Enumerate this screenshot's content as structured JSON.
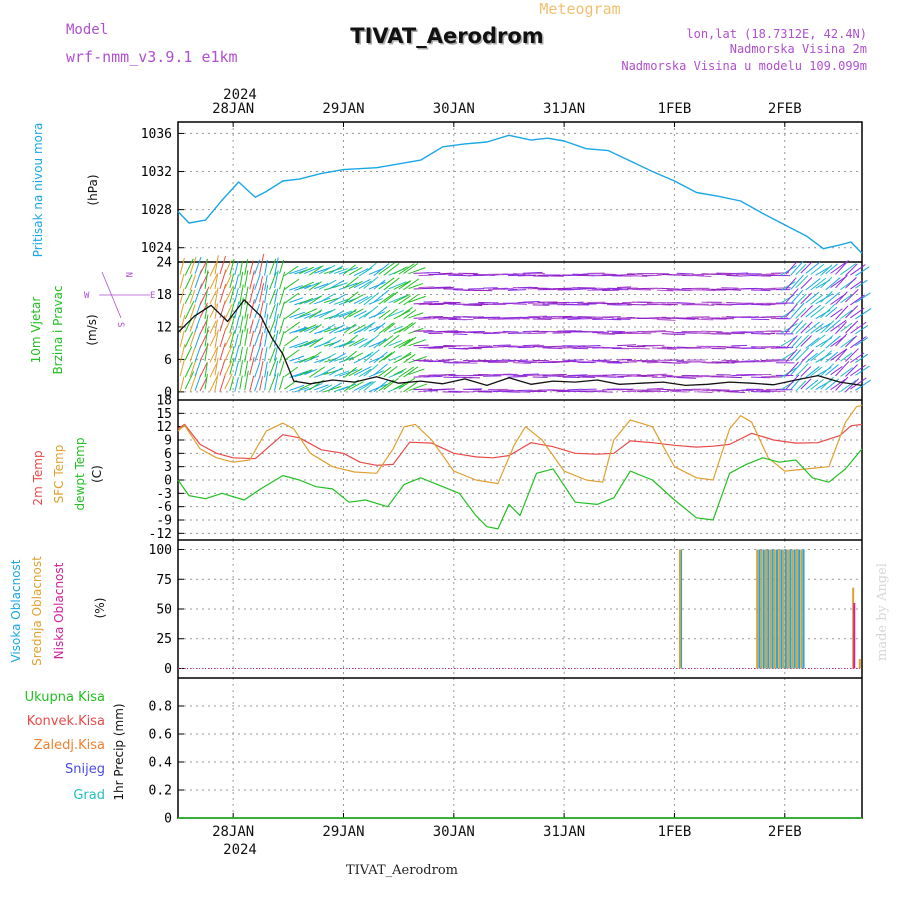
{
  "header": {
    "title": "TIVAT_Aerodrom",
    "subtitle": "Meteogram",
    "model_label": "Model",
    "model_name": "wrf-nmm_v3.9.1 e1km",
    "lonlat": "lon,lat (18.7312E, 42.4N)",
    "elev": "Nadmorska Visina 2m",
    "elev_model": "Nadmorska Visina u modelu 109.099m",
    "footer": "TIVAT_Aerodrom",
    "watermark": "made by Angel",
    "year": "2024"
  },
  "time_axis": {
    "ticks": [
      "28JAN",
      "29JAN",
      "30JAN",
      "31JAN",
      "1FEB",
      "2FEB"
    ],
    "tick_positions_days": [
      0.5,
      1.5,
      2.5,
      3.5,
      4.5,
      5.5
    ],
    "range_days": [
      0,
      6.2
    ]
  },
  "compass": {
    "n": "N",
    "s": "S",
    "e": "E",
    "w": "W"
  },
  "colors": {
    "pressure": "#1aa7e6",
    "t2m": "#e84a4a",
    "sfc": "#e0a030",
    "dew": "#22c022",
    "cloud_high": "#1aa7e6",
    "cloud_mid": "#e0a030",
    "cloud_low": "#d0209a",
    "wind_label": "#22c022",
    "precip_total": "#22c022",
    "precip_conv": "#e84a4a",
    "precip_frz": "#f08030",
    "precip_snow": "#4a4ae8",
    "precip_grad": "#22c0c0",
    "compass": "#b050d0"
  },
  "chart_data": [
    {
      "id": "pressure",
      "type": "line",
      "ylabel_main": "Pritisak na nivou mora",
      "ylabel_unit": "(hPa)",
      "ylim": [
        1022.5,
        1037.2
      ],
      "yticks": [
        1024,
        1028,
        1032,
        1036
      ],
      "grid": true,
      "series": [
        {
          "key": "slp",
          "x": [
            0,
            0.1,
            0.25,
            0.4,
            0.55,
            0.7,
            0.8,
            0.95,
            1.1,
            1.3,
            1.5,
            1.8,
            2.0,
            2.2,
            2.4,
            2.6,
            2.8,
            3.0,
            3.2,
            3.35,
            3.5,
            3.7,
            3.9,
            4.1,
            4.3,
            4.5,
            4.7,
            4.9,
            5.1,
            5.3,
            5.5,
            5.7,
            5.85,
            6.0,
            6.1,
            6.2
          ],
          "y": [
            1027.8,
            1026.6,
            1026.9,
            1029.0,
            1030.9,
            1029.3,
            1029.9,
            1031.0,
            1031.2,
            1031.8,
            1032.2,
            1032.4,
            1032.8,
            1033.2,
            1034.6,
            1034.9,
            1035.1,
            1035.8,
            1035.3,
            1035.5,
            1035.2,
            1034.4,
            1034.2,
            1033.1,
            1032.0,
            1031.0,
            1029.8,
            1029.4,
            1028.9,
            1027.6,
            1026.4,
            1025.2,
            1023.9,
            1024.3,
            1024.6,
            1023.4
          ]
        }
      ]
    },
    {
      "id": "wind",
      "type": "line",
      "ylabel_main": "10m Vjetar",
      "ylabel_main2": "Brzina i Pravac",
      "ylabel_unit": "(m/s)",
      "ylim": [
        -1.5,
        24
      ],
      "yticks": [
        0,
        6,
        12,
        18,
        24
      ],
      "grid": true,
      "series": [
        {
          "key": "speed",
          "x": [
            0.0,
            0.15,
            0.3,
            0.45,
            0.6,
            0.75,
            0.85,
            0.95,
            1.05,
            1.2,
            1.4,
            1.6,
            1.8,
            2.0,
            2.2,
            2.4,
            2.6,
            2.8,
            3.0,
            3.2,
            3.4,
            3.6,
            3.8,
            4.0,
            4.2,
            4.4,
            4.6,
            4.8,
            5.0,
            5.2,
            5.4,
            5.6,
            5.8,
            6.0,
            6.2
          ],
          "y": [
            11.0,
            14.0,
            16.0,
            13.0,
            17.0,
            14.0,
            10.0,
            7.0,
            2.0,
            1.5,
            2.2,
            1.8,
            2.8,
            1.6,
            2.0,
            1.5,
            2.4,
            1.2,
            2.6,
            1.4,
            2.0,
            1.8,
            2.2,
            1.4,
            1.6,
            1.8,
            1.2,
            1.4,
            1.8,
            1.6,
            1.3,
            2.2,
            3.0,
            1.8,
            1.2
          ]
        }
      ]
    },
    {
      "id": "temps",
      "type": "line",
      "ylabel_main": "2m Temp",
      "ylabel_main2": "SFC Temp",
      "ylabel_main3": "dewpt Temp",
      "ylabel_unit": "(C)",
      "ylim": [
        -13.5,
        18
      ],
      "yticks": [
        -12,
        -9,
        -6,
        -3,
        0,
        3,
        6,
        9,
        12,
        15,
        18
      ],
      "grid": true,
      "series": [
        {
          "key": "t2m",
          "x": [
            0,
            0.06,
            0.2,
            0.35,
            0.5,
            0.7,
            0.95,
            1.1,
            1.3,
            1.5,
            1.65,
            1.8,
            1.95,
            2.1,
            2.3,
            2.5,
            2.7,
            2.85,
            3.0,
            3.2,
            3.4,
            3.6,
            3.8,
            3.95,
            4.1,
            4.3,
            4.5,
            4.7,
            4.85,
            5.0,
            5.2,
            5.4,
            5.6,
            5.8,
            6.0,
            6.1,
            6.2
          ],
          "y": [
            11.5,
            12.5,
            8.0,
            6.0,
            5.0,
            4.8,
            10.2,
            9.5,
            6.8,
            6.0,
            4.0,
            3.3,
            3.5,
            8.5,
            8.3,
            6.0,
            5.2,
            5.0,
            5.5,
            8.4,
            7.5,
            6.0,
            5.8,
            6.0,
            8.8,
            8.4,
            7.8,
            7.4,
            7.6,
            8.0,
            10.5,
            9.0,
            8.3,
            8.4,
            10.0,
            12.2,
            12.5
          ]
        },
        {
          "key": "sfc",
          "x": [
            0,
            0.06,
            0.2,
            0.35,
            0.5,
            0.65,
            0.8,
            0.95,
            1.05,
            1.2,
            1.4,
            1.6,
            1.8,
            1.95,
            2.05,
            2.15,
            2.3,
            2.5,
            2.7,
            2.9,
            3.05,
            3.15,
            3.3,
            3.5,
            3.7,
            3.85,
            3.95,
            4.1,
            4.3,
            4.5,
            4.7,
            4.85,
            5.0,
            5.1,
            5.2,
            5.35,
            5.5,
            5.7,
            5.9,
            6.05,
            6.15,
            6.2
          ],
          "y": [
            11.0,
            12.3,
            7.0,
            5.0,
            4.0,
            4.5,
            11.0,
            12.8,
            11.5,
            6.0,
            3.0,
            1.8,
            1.5,
            7.0,
            12.0,
            12.5,
            9.0,
            2.0,
            0.0,
            -0.8,
            8.0,
            12.0,
            9.0,
            2.0,
            0.0,
            -0.5,
            9.0,
            13.5,
            12.0,
            3.0,
            0.5,
            0.0,
            11.5,
            14.5,
            13.0,
            5.0,
            2.0,
            2.5,
            3.0,
            13.0,
            16.5,
            16.8
          ]
        },
        {
          "key": "dew",
          "x": [
            0,
            0.1,
            0.25,
            0.4,
            0.6,
            0.75,
            0.95,
            1.1,
            1.25,
            1.4,
            1.55,
            1.7,
            1.9,
            2.05,
            2.2,
            2.4,
            2.55,
            2.7,
            2.8,
            2.9,
            3.0,
            3.1,
            3.25,
            3.4,
            3.6,
            3.8,
            3.95,
            4.1,
            4.3,
            4.5,
            4.7,
            4.85,
            5.0,
            5.15,
            5.3,
            5.45,
            5.6,
            5.75,
            5.9,
            6.05,
            6.2
          ],
          "y": [
            0.0,
            -3.5,
            -4.2,
            -3.0,
            -4.5,
            -2.0,
            1.0,
            0.0,
            -1.5,
            -2.0,
            -5.0,
            -4.5,
            -6.0,
            -1.0,
            0.5,
            -1.5,
            -3.0,
            -8.0,
            -10.5,
            -11.0,
            -5.5,
            -8.0,
            1.5,
            2.5,
            -5.0,
            -5.5,
            -4.0,
            2.0,
            0.0,
            -4.5,
            -8.5,
            -9.0,
            1.5,
            3.5,
            5.0,
            4.0,
            4.5,
            0.5,
            -0.5,
            2.5,
            7.0
          ]
        }
      ]
    },
    {
      "id": "clouds",
      "type": "bar",
      "ylabel_main": "Visoka Oblacnost",
      "ylabel_main2": "Srednja Oblacnost",
      "ylabel_main3": "Niska Oblacnost",
      "ylabel_unit": "(%)",
      "ylim": [
        -8,
        108
      ],
      "yticks": [
        0,
        25,
        50,
        75,
        100
      ],
      "grid": true,
      "series": [
        {
          "key": "high",
          "x": [
            4.56,
            5.27,
            5.31,
            5.35,
            5.39,
            5.43,
            5.47,
            5.51,
            5.55,
            5.59,
            5.63,
            5.67
          ],
          "y": [
            100,
            100,
            100,
            100,
            100,
            100,
            100,
            100,
            100,
            100,
            100,
            100
          ]
        },
        {
          "key": "mid",
          "x": [
            4.55,
            5.25,
            5.29,
            5.33,
            5.37,
            5.41,
            5.45,
            5.49,
            5.53,
            5.57,
            5.61,
            5.65,
            6.12,
            6.18
          ],
          "y": [
            100,
            100,
            100,
            100,
            100,
            100,
            100,
            100,
            100,
            100,
            100,
            100,
            68,
            8
          ]
        },
        {
          "key": "low",
          "x": [
            6.13
          ],
          "y": [
            55
          ]
        }
      ]
    },
    {
      "id": "precip",
      "type": "line",
      "ylabel_unit": "1hr Precip (mm)",
      "ylim": [
        0,
        1.0
      ],
      "yticks": [
        0,
        0.2,
        0.4,
        0.6,
        0.8
      ],
      "grid": true,
      "legend": [
        "Ukupna Kisa",
        "Konvek.Kisa",
        "Zaledj.Kisa",
        "Snijeg",
        "Grad"
      ],
      "series": [
        {
          "key": "total",
          "x": [
            0,
            6.2
          ],
          "y": [
            0,
            0
          ]
        }
      ]
    }
  ]
}
